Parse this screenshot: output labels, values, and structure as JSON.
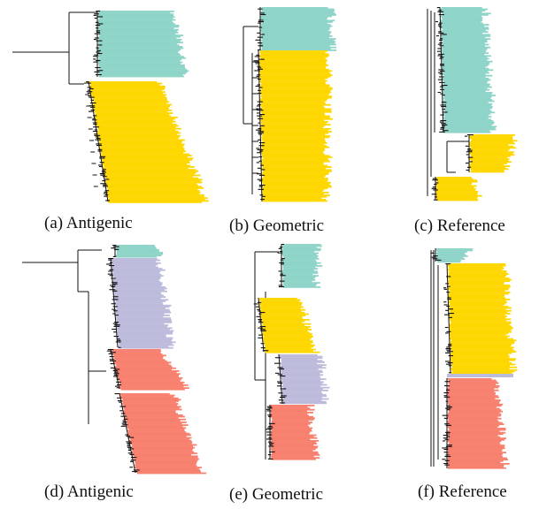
{
  "colors": {
    "teal": "#8ed4c8",
    "yellow": "#ffd700",
    "lavender": "#bdbbdc",
    "salmon": "#f8806f",
    "branch": "#111111"
  },
  "panels": [
    {
      "id": "a",
      "caption": "(a) Antigenic",
      "clades": [
        "teal",
        "yellow"
      ]
    },
    {
      "id": "b",
      "caption": "(b) Geometric",
      "clades": [
        "teal",
        "yellow"
      ]
    },
    {
      "id": "c",
      "caption": "(c) Reference",
      "clades": [
        "teal",
        "yellow"
      ]
    },
    {
      "id": "d",
      "caption": "(d) Antigenic",
      "clades": [
        "teal",
        "lavender",
        "salmon"
      ]
    },
    {
      "id": "e",
      "caption": "(e) Geometric",
      "clades": [
        "teal",
        "yellow",
        "lavender",
        "salmon"
      ]
    },
    {
      "id": "f",
      "caption": "(f) Reference",
      "clades": [
        "teal",
        "yellow",
        "lavender",
        "salmon"
      ]
    }
  ]
}
